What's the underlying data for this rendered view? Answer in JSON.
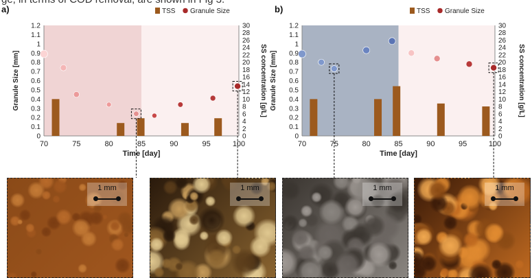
{
  "header_text": "ge, in terms of COD removal, are shown in Fig 3.",
  "chart_data": [
    {
      "type": "bar",
      "panel_label": "a)",
      "xlabel": "Time [day]",
      "ylabel_left": "Granule Size [mm]",
      "ylabel_right": "SS concentration [g/L]",
      "xlim": [
        70,
        100
      ],
      "xticks": [
        70,
        75,
        80,
        85,
        90,
        95,
        100
      ],
      "ylim_left": [
        0,
        1.2
      ],
      "yticks_left": [
        0,
        0.1,
        0.2,
        0.3,
        0.4,
        0.5,
        0.6,
        0.7,
        0.8,
        0.9,
        1,
        1.1,
        1.2
      ],
      "ylim_right": [
        0,
        30
      ],
      "yticks_right": [
        0,
        2,
        4,
        6,
        8,
        10,
        12,
        14,
        16,
        18,
        20,
        22,
        24,
        26,
        28,
        30
      ],
      "shaded_period": [
        70,
        85
      ],
      "shade_color": "#f0d4d4",
      "bg_color": "#fbf0f0",
      "legend": [
        "TSS",
        "Granule Size"
      ],
      "series": [
        {
          "name": "TSS",
          "kind": "bar",
          "axis": "right",
          "color": "#9c5a1e",
          "x": [
            71.8,
            81.8,
            84.9,
            91.7,
            96.8
          ],
          "values": [
            10,
            3.5,
            4.8,
            3.5,
            4.8
          ]
        },
        {
          "name": "Granule Size",
          "kind": "scatter",
          "axis": "left",
          "color": "#c0303a",
          "points": [
            {
              "x": 70,
              "y": 0.89,
              "fill": "#fbd4d4",
              "r": 5.5
            },
            {
              "x": 73,
              "y": 0.74,
              "fill": "#f4b6b6",
              "r": 4.5
            },
            {
              "x": 75,
              "y": 0.45,
              "fill": "#eb9a9a",
              "r": 4.2
            },
            {
              "x": 80,
              "y": 0.34,
              "fill": "#ee9a9a",
              "r": 3.5
            },
            {
              "x": 84.2,
              "y": 0.24,
              "fill": "#e58f8f",
              "r": 3.8
            },
            {
              "x": 87,
              "y": 0.22,
              "fill": "#c84848",
              "r": 3.5
            },
            {
              "x": 91,
              "y": 0.34,
              "fill": "#b83a3a",
              "r": 3.8
            },
            {
              "x": 96,
              "y": 0.41,
              "fill": "#b53a3a",
              "r": 4
            },
            {
              "x": 99.8,
              "y": 0.54,
              "fill": "#a82a2a",
              "r": 4.5
            }
          ]
        }
      ],
      "highlight_x": [
        84.2,
        99.8
      ]
    },
    {
      "type": "bar",
      "panel_label": "b)",
      "xlabel": "Time [day]",
      "ylabel_left": "Granule Size [mm]",
      "ylabel_right": "SS concentration [g/L]",
      "xlim": [
        70,
        100
      ],
      "xticks": [
        70,
        75,
        80,
        85,
        90,
        95,
        100
      ],
      "ylim_left": [
        0,
        1.2
      ],
      "yticks_left": [
        0,
        0.1,
        0.2,
        0.3,
        0.4,
        0.5,
        0.6,
        0.7,
        0.8,
        0.9,
        1,
        1.1,
        1.2
      ],
      "ylim_right": [
        0,
        30
      ],
      "yticks_right": [
        0,
        2,
        4,
        6,
        8,
        10,
        12,
        14,
        16,
        18,
        20,
        22,
        24,
        26,
        28,
        30
      ],
      "shaded_period": [
        70,
        85
      ],
      "shade_color": "#a9b3c3",
      "bg_color": "#fbf0f0",
      "legend": [
        "TSS",
        "Granule Size"
      ],
      "series": [
        {
          "name": "TSS",
          "kind": "bar",
          "axis": "right",
          "color": "#9c5a1e",
          "x": [
            71.8,
            81.8,
            84.7,
            91.6,
            98.6
          ],
          "values": [
            10,
            10,
            13.5,
            8.8,
            8
          ]
        },
        {
          "name": "Granule Size",
          "kind": "scatter",
          "axis": "left",
          "color": "#6f7fc0",
          "points": [
            {
              "x": 70,
              "y": 0.89,
              "fill": "#7f98cc",
              "r": 5.5
            },
            {
              "x": 73,
              "y": 0.8,
              "fill": "#7f98cc",
              "r": 4.5
            },
            {
              "x": 75,
              "y": 0.73,
              "fill": "#7f98cc",
              "r": 4.5
            },
            {
              "x": 80,
              "y": 0.93,
              "fill": "#6a84c0",
              "r": 5
            },
            {
              "x": 84,
              "y": 1.03,
              "fill": "#5a74b4",
              "r": 5
            },
            {
              "x": 87,
              "y": 0.9,
              "fill": "#f7c4c4",
              "r": 4.5
            },
            {
              "x": 91,
              "y": 0.84,
              "fill": "#e58f8f",
              "r": 4.5
            },
            {
              "x": 96,
              "y": 0.78,
              "fill": "#b83a3a",
              "r": 4.5
            },
            {
              "x": 99.8,
              "y": 0.74,
              "fill": "#a82a2a",
              "r": 4.5
            }
          ]
        }
      ],
      "highlight_x": [
        75,
        99.8
      ]
    }
  ],
  "photos": [
    {
      "scale_label": "1 mm",
      "palette": [
        "#8a4a18",
        "#b86a2a",
        "#a0561e",
        "#c47b36",
        "#7a3c12"
      ]
    },
    {
      "scale_label": "1 mm",
      "palette": [
        "#2a1a0c",
        "#c49a5a",
        "#8a6430",
        "#e0c890",
        "#5a3c1a"
      ]
    },
    {
      "scale_label": "1 mm",
      "palette": [
        "#3a3530",
        "#6a6460",
        "#8a8580",
        "#4a4540",
        "#a09a95"
      ]
    },
    {
      "scale_label": "1 mm",
      "palette": [
        "#3a1a08",
        "#e08a30",
        "#c06a20",
        "#f0a850",
        "#8a4a14"
      ]
    }
  ]
}
